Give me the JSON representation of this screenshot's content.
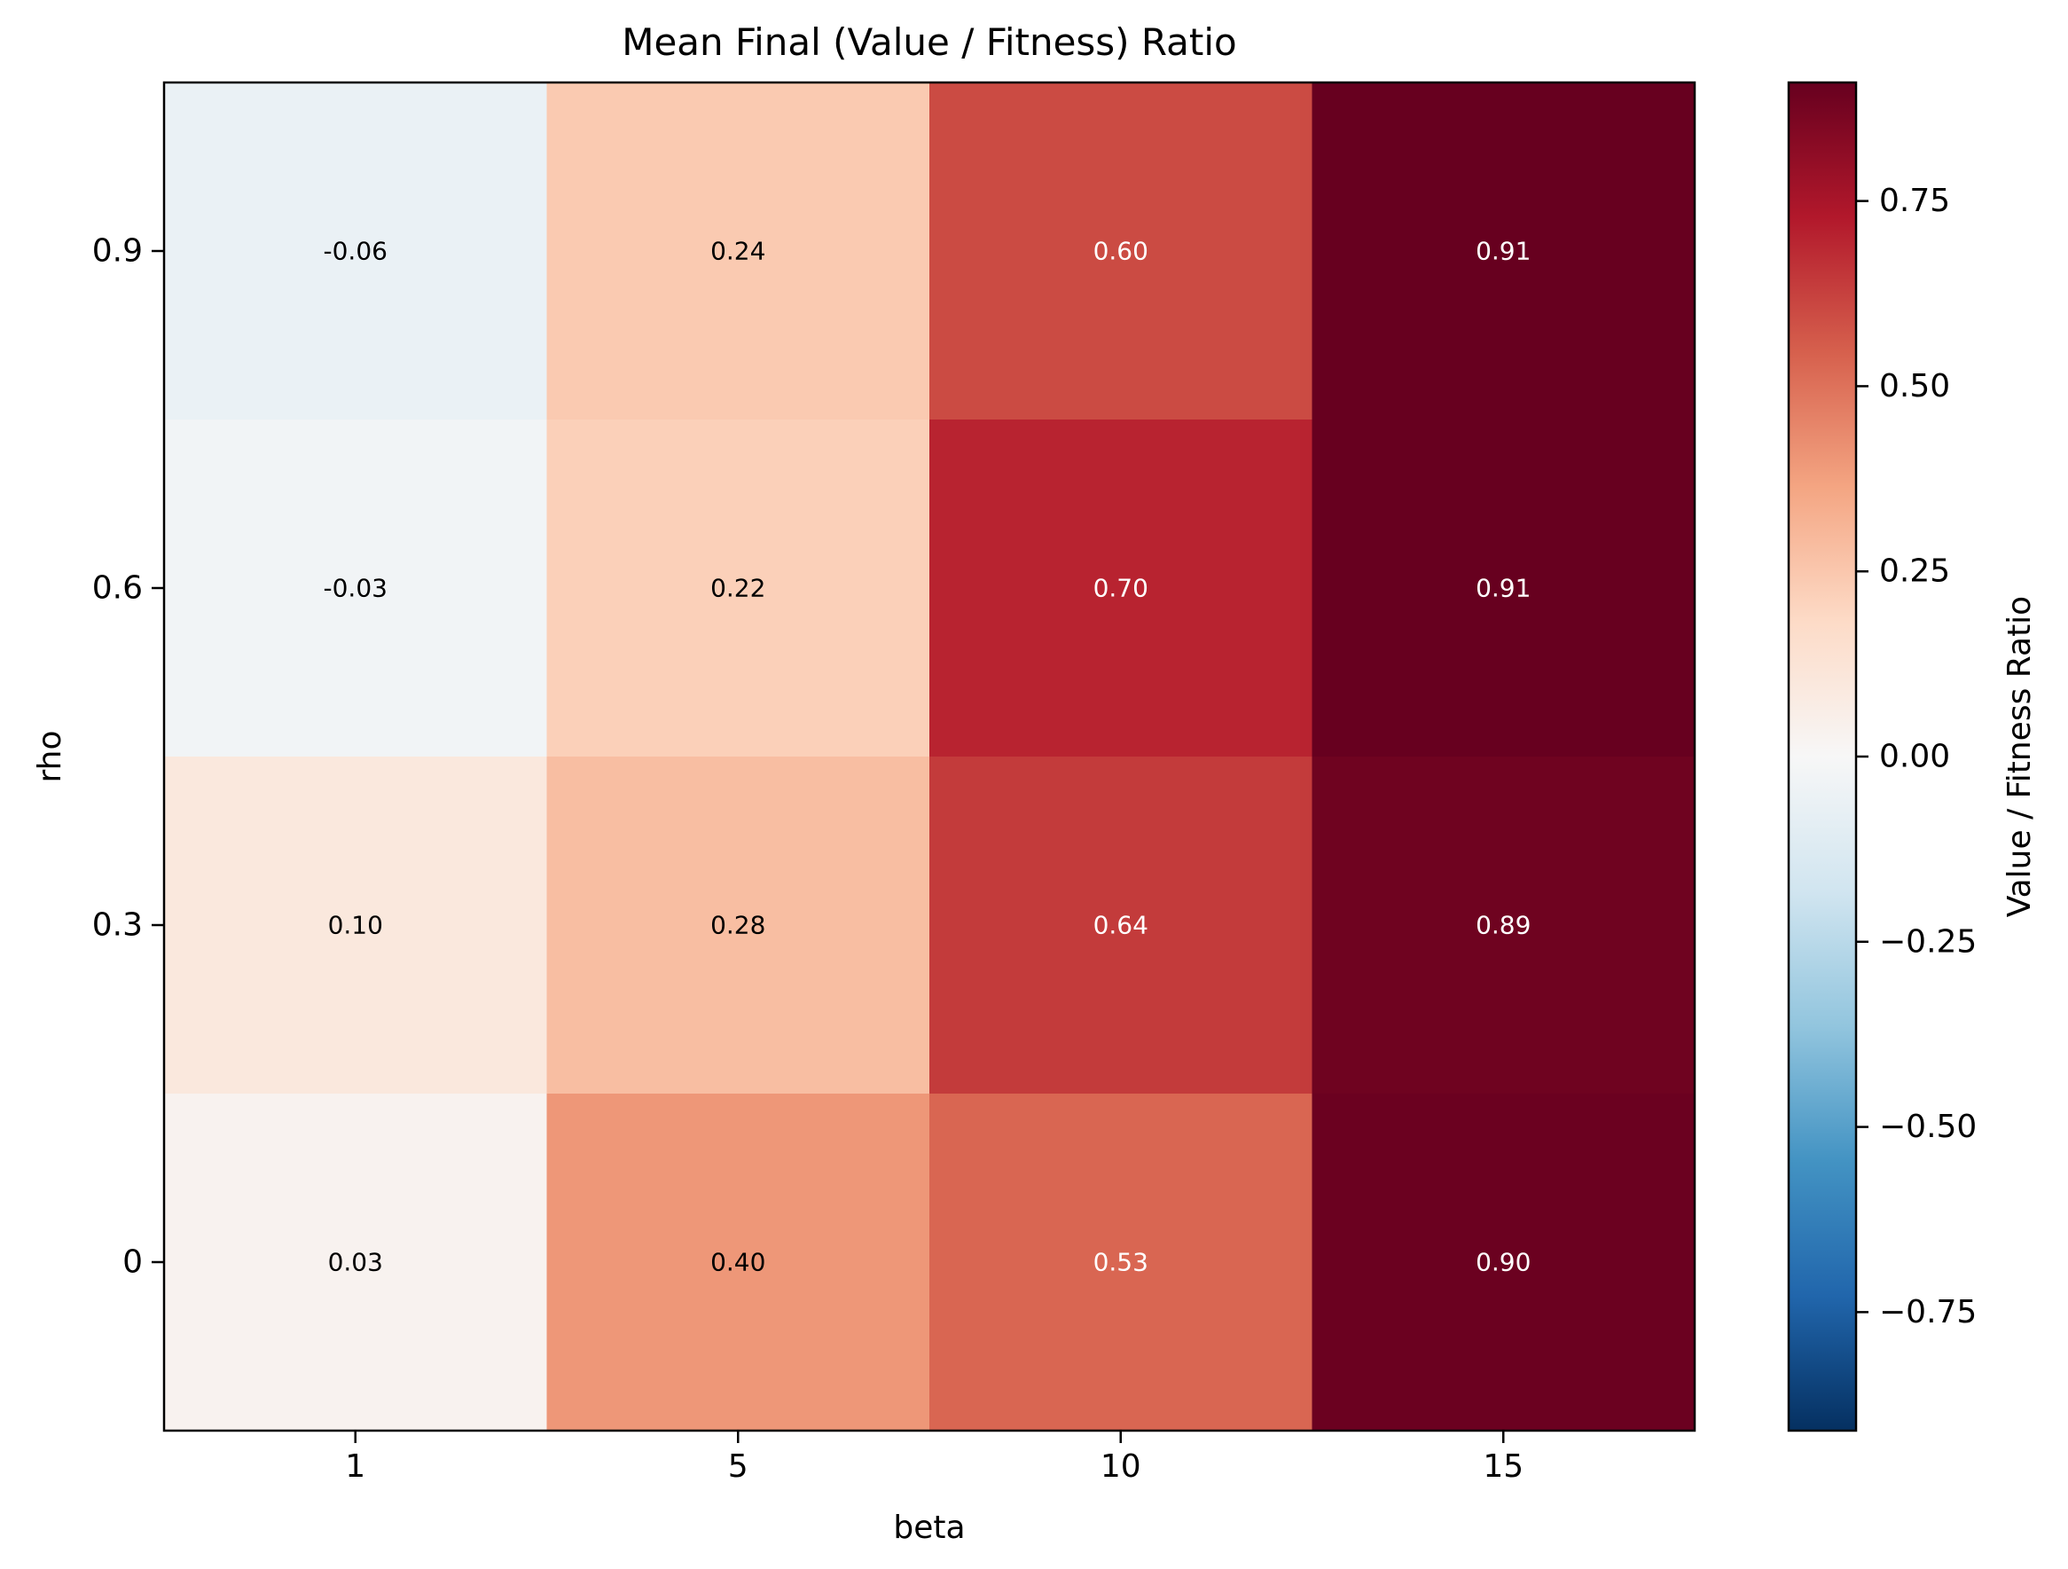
{
  "chart_data": {
    "type": "heatmap",
    "title": "Mean Final (Value / Fitness) Ratio",
    "xlabel": "beta",
    "ylabel": "rho",
    "x_categories": [
      "1",
      "5",
      "10",
      "15"
    ],
    "y_categories": [
      "0.9",
      "0.6",
      "0.3",
      "0"
    ],
    "values": [
      [
        -0.06,
        0.24,
        0.6,
        0.91
      ],
      [
        -0.03,
        0.22,
        0.7,
        0.91
      ],
      [
        0.1,
        0.28,
        0.64,
        0.89
      ],
      [
        0.03,
        0.4,
        0.53,
        0.9
      ]
    ],
    "cell_labels": [
      [
        "-0.06",
        "0.24",
        "0.60",
        "0.91"
      ],
      [
        "-0.03",
        "0.22",
        "0.70",
        "0.91"
      ],
      [
        "0.10",
        "0.28",
        "0.64",
        "0.89"
      ],
      [
        "0.03",
        "0.40",
        "0.53",
        "0.90"
      ]
    ],
    "colormap": "RdBu_r",
    "vmin": -0.91,
    "vmax": 0.91,
    "colorbar": {
      "label": "Value / Fitness Ratio",
      "ticks": [
        0.75,
        0.5,
        0.25,
        0.0,
        -0.25,
        -0.5,
        -0.75
      ],
      "tick_labels": [
        "0.75",
        "0.50",
        "0.25",
        "0.00",
        "−0.25",
        "−0.50",
        "−0.75"
      ]
    }
  }
}
